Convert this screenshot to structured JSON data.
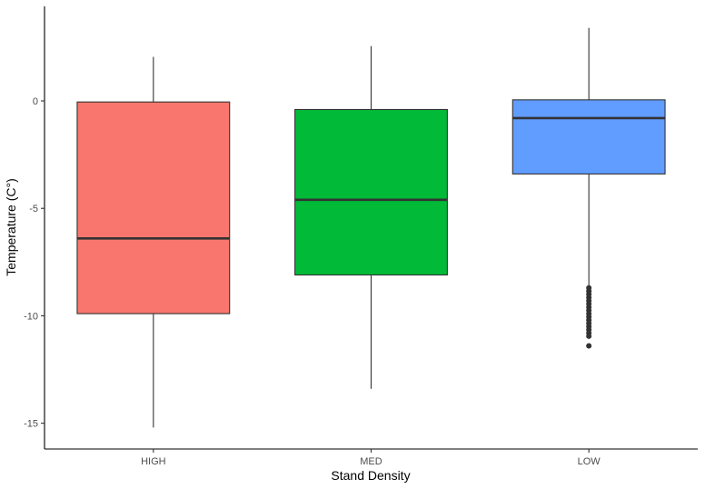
{
  "chart_data": {
    "type": "boxplot",
    "xlabel": "Stand Density",
    "ylabel": "Temperature (C°)",
    "categories": [
      "HIGH",
      "MED",
      "LOW"
    ],
    "ylim": [
      -16.2,
      4.4
    ],
    "yticks": [
      0,
      -5,
      -10,
      -15
    ],
    "ytick_labels": [
      "0",
      "-5",
      "-10",
      "-15"
    ],
    "grid": false,
    "legend": "none",
    "box_stroke": "#333333",
    "boxes": [
      {
        "category": "HIGH",
        "min": -15.2,
        "q1": -9.9,
        "median": -6.4,
        "q3": -0.05,
        "max": 2.05,
        "fill": "#F8766D",
        "outliers": []
      },
      {
        "category": "MED",
        "min": -13.4,
        "q1": -8.1,
        "median": -4.6,
        "q3": -0.4,
        "max": 2.55,
        "fill": "#00BA38",
        "outliers": []
      },
      {
        "category": "LOW",
        "min": -8.6,
        "q1": -3.4,
        "median": -0.8,
        "q3": 0.05,
        "max": 3.4,
        "fill": "#619CFF",
        "outliers": [
          -8.7,
          -8.85,
          -9.0,
          -9.15,
          -9.3,
          -9.45,
          -9.6,
          -9.75,
          -9.9,
          -10.05,
          -10.2,
          -10.35,
          -10.5,
          -10.65,
          -10.8,
          -10.95,
          -11.4
        ]
      }
    ]
  }
}
